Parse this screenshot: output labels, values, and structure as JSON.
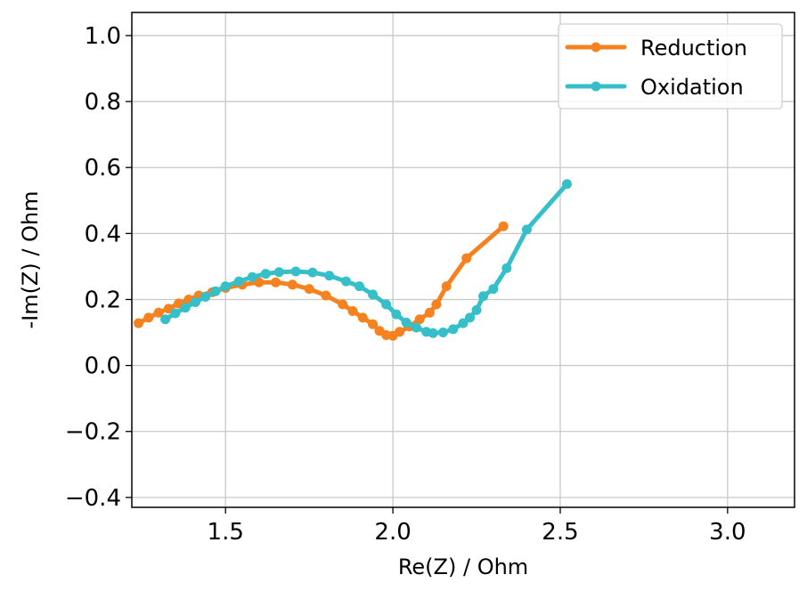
{
  "chart_data": {
    "type": "line",
    "xlabel": "Re(Z) / Ohm",
    "ylabel": "-Im(Z) / Ohm",
    "xlim": [
      1.22,
      3.2
    ],
    "ylim": [
      -0.43,
      1.07
    ],
    "x_ticks": [
      1.5,
      2.0,
      2.5,
      3.0
    ],
    "x_tick_labels": [
      "1.5",
      "2.0",
      "2.5",
      "3.0"
    ],
    "y_ticks": [
      -0.4,
      -0.2,
      0.0,
      0.2,
      0.4,
      0.6,
      0.8,
      1.0
    ],
    "y_tick_labels": [
      "−0.4",
      "−0.2",
      "0.0",
      "0.2",
      "0.4",
      "0.6",
      "0.8",
      "1.0"
    ],
    "grid": true,
    "legend_position": "top-right",
    "series": [
      {
        "name": "Reduction",
        "color": "#f5821f",
        "x": [
          1.24,
          1.27,
          1.3,
          1.33,
          1.36,
          1.39,
          1.42,
          1.46,
          1.5,
          1.55,
          1.6,
          1.65,
          1.7,
          1.75,
          1.8,
          1.85,
          1.88,
          1.91,
          1.94,
          1.96,
          1.98,
          2.0,
          2.02,
          2.05,
          2.08,
          2.11,
          2.13,
          2.16,
          2.22,
          2.33
        ],
        "y": [
          0.128,
          0.145,
          0.16,
          0.172,
          0.188,
          0.2,
          0.212,
          0.222,
          0.235,
          0.245,
          0.252,
          0.252,
          0.245,
          0.232,
          0.212,
          0.185,
          0.165,
          0.145,
          0.125,
          0.105,
          0.092,
          0.09,
          0.102,
          0.118,
          0.14,
          0.16,
          0.185,
          0.24,
          0.325,
          0.422
        ]
      },
      {
        "name": "Oxidation",
        "color": "#36bfc9",
        "x": [
          1.32,
          1.35,
          1.38,
          1.41,
          1.44,
          1.47,
          1.5,
          1.54,
          1.58,
          1.62,
          1.66,
          1.71,
          1.76,
          1.81,
          1.86,
          1.9,
          1.94,
          1.98,
          2.01,
          2.04,
          2.07,
          2.1,
          2.12,
          2.15,
          2.18,
          2.21,
          2.23,
          2.25,
          2.27,
          2.3,
          2.34,
          2.4,
          2.52
        ],
        "y": [
          0.14,
          0.158,
          0.175,
          0.192,
          0.208,
          0.225,
          0.24,
          0.255,
          0.268,
          0.278,
          0.283,
          0.285,
          0.282,
          0.272,
          0.255,
          0.24,
          0.215,
          0.185,
          0.155,
          0.13,
          0.115,
          0.102,
          0.098,
          0.1,
          0.11,
          0.128,
          0.145,
          0.168,
          0.21,
          0.232,
          0.295,
          0.412,
          0.55
        ]
      }
    ]
  }
}
